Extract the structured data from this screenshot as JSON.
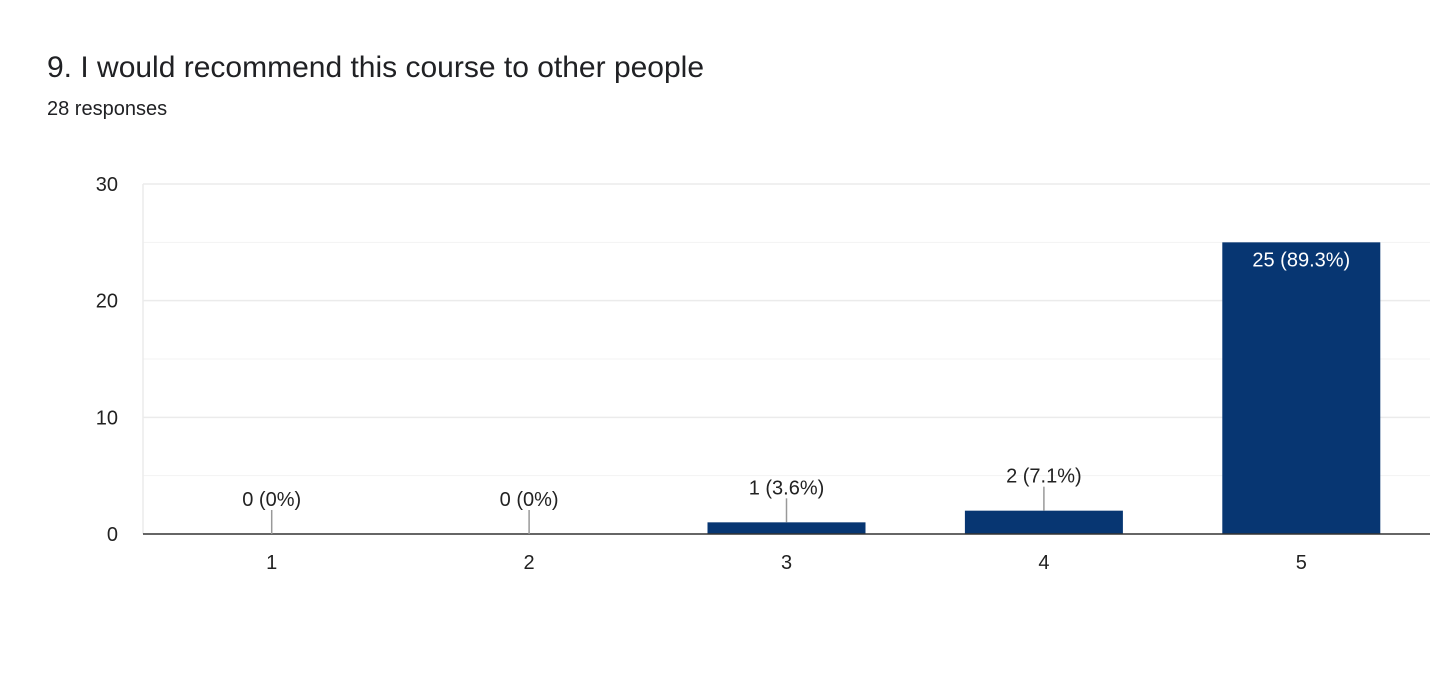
{
  "question": {
    "title": "9. I would recommend this course to other people",
    "responses": "28 responses"
  },
  "colors": {
    "bar": "#073672",
    "grid": "#ebebeb",
    "axis": "#333333",
    "leader": "#999999",
    "label": "#222222",
    "inside_label": "#ffffff"
  },
  "chart_data": {
    "type": "bar",
    "title": "9. I would recommend this course to other people",
    "categories": [
      "1",
      "2",
      "3",
      "4",
      "5"
    ],
    "values": [
      0,
      0,
      1,
      2,
      25
    ],
    "data_labels": [
      "0 (0%)",
      "0 (0%)",
      "1 (3.6%)",
      "2 (7.1%)",
      "25 (89.3%)"
    ],
    "ylim": [
      0,
      30
    ],
    "yticks": [
      0,
      10,
      20,
      30
    ],
    "minor_grid": [
      5,
      15,
      25
    ],
    "xlabel": "",
    "ylabel": "",
    "grid": true,
    "legend": "none"
  }
}
